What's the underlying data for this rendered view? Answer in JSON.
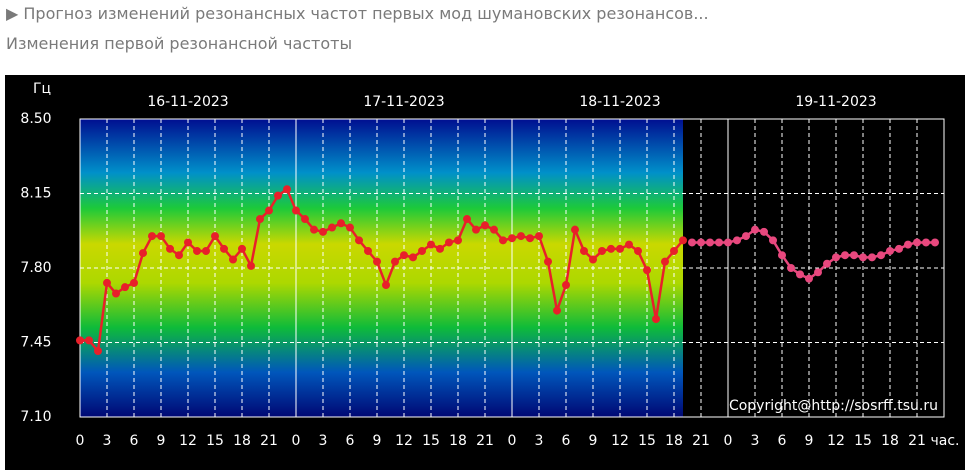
{
  "header": {
    "title": "▶ Прогноз изменений резонансных частот первых мод шумановских резонансов...",
    "subtitle": "Изменения первой резонансной частоты"
  },
  "chart_data": {
    "type": "line",
    "y_label": "Гц",
    "x_label": "час.",
    "annotation": "Copyright@http://sosrff.tsu.ru",
    "days": [
      "16-11-2023",
      "17-11-2023",
      "18-11-2023",
      "19-11-2023"
    ],
    "xlim": [
      0,
      96
    ],
    "ylim": [
      7.1,
      8.5
    ],
    "yticks": [
      {
        "value": 7.1,
        "label": "7.10"
      },
      {
        "value": 7.45,
        "label": "7.45"
      },
      {
        "value": 7.8,
        "label": "7.80"
      },
      {
        "value": 8.15,
        "label": "8.15"
      },
      {
        "value": 8.5,
        "label": "8.50"
      }
    ],
    "xticks": [
      {
        "value": 0,
        "label": "0"
      },
      {
        "value": 3,
        "label": "3"
      },
      {
        "value": 6,
        "label": "6"
      },
      {
        "value": 9,
        "label": "9"
      },
      {
        "value": 12,
        "label": "12"
      },
      {
        "value": 15,
        "label": "15"
      },
      {
        "value": 18,
        "label": "18"
      },
      {
        "value": 21,
        "label": "21"
      },
      {
        "value": 24,
        "label": "0"
      },
      {
        "value": 27,
        "label": "3"
      },
      {
        "value": 30,
        "label": "6"
      },
      {
        "value": 33,
        "label": "9"
      },
      {
        "value": 36,
        "label": "12"
      },
      {
        "value": 39,
        "label": "15"
      },
      {
        "value": 42,
        "label": "18"
      },
      {
        "value": 45,
        "label": "21"
      },
      {
        "value": 48,
        "label": "0"
      },
      {
        "value": 51,
        "label": "3"
      },
      {
        "value": 54,
        "label": "6"
      },
      {
        "value": 57,
        "label": "9"
      },
      {
        "value": 60,
        "label": "12"
      },
      {
        "value": 63,
        "label": "15"
      },
      {
        "value": 66,
        "label": "18"
      },
      {
        "value": 69,
        "label": "21"
      },
      {
        "value": 72,
        "label": "0"
      },
      {
        "value": 75,
        "label": "3"
      },
      {
        "value": 78,
        "label": "6"
      },
      {
        "value": 81,
        "label": "9"
      },
      {
        "value": 84,
        "label": "12"
      },
      {
        "value": 87,
        "label": "15"
      },
      {
        "value": 90,
        "label": "18"
      },
      {
        "value": 93,
        "label": "21"
      }
    ],
    "grid": true,
    "series": [
      {
        "color": "#e8202a",
        "x": [
          0,
          1,
          2,
          3,
          4,
          5,
          6,
          7,
          8,
          9,
          10,
          11,
          12,
          13,
          14,
          15,
          16,
          17,
          18,
          19,
          20,
          21,
          22,
          23,
          24,
          25,
          26,
          27,
          28,
          29,
          30,
          31,
          32,
          33,
          34,
          35,
          36,
          37,
          38,
          39,
          40,
          41,
          42,
          43,
          44,
          45,
          46,
          47,
          48,
          49,
          50,
          51,
          52,
          53,
          54,
          55,
          56,
          57,
          58,
          59,
          60,
          61,
          62,
          63,
          64,
          65,
          66,
          67
        ],
        "values": [
          7.46,
          7.46,
          7.41,
          7.73,
          7.68,
          7.71,
          7.73,
          7.87,
          7.95,
          7.95,
          7.89,
          7.86,
          7.92,
          7.88,
          7.88,
          7.95,
          7.89,
          7.84,
          7.89,
          7.81,
          8.03,
          8.07,
          8.14,
          8.17,
          8.07,
          8.03,
          7.98,
          7.97,
          7.99,
          8.01,
          7.99,
          7.93,
          7.88,
          7.83,
          7.72,
          7.83,
          7.86,
          7.85,
          7.88,
          7.91,
          7.89,
          7.92,
          7.93,
          8.03,
          7.98,
          8.0,
          7.98,
          7.93,
          7.94,
          7.95,
          7.94,
          7.95,
          7.83,
          7.6,
          7.72,
          7.98,
          7.88,
          7.84,
          7.88,
          7.89,
          7.89,
          7.91,
          7.88,
          7.79,
          7.56,
          7.83,
          7.88,
          7.93
        ]
      },
      {
        "color": "#e8487e",
        "x": [
          68,
          69,
          70,
          71,
          72,
          73,
          74,
          75,
          76,
          77,
          78,
          79,
          80,
          81,
          82,
          83,
          84,
          85,
          86,
          87,
          88,
          89,
          90,
          91,
          92,
          93,
          94,
          95
        ],
        "values": [
          7.92,
          7.92,
          7.92,
          7.92,
          7.92,
          7.93,
          7.95,
          7.98,
          7.97,
          7.93,
          7.86,
          7.8,
          7.77,
          7.75,
          7.78,
          7.82,
          7.85,
          7.86,
          7.86,
          7.85,
          7.85,
          7.86,
          7.88,
          7.89,
          7.91,
          7.92,
          7.92,
          7.92
        ]
      }
    ]
  }
}
